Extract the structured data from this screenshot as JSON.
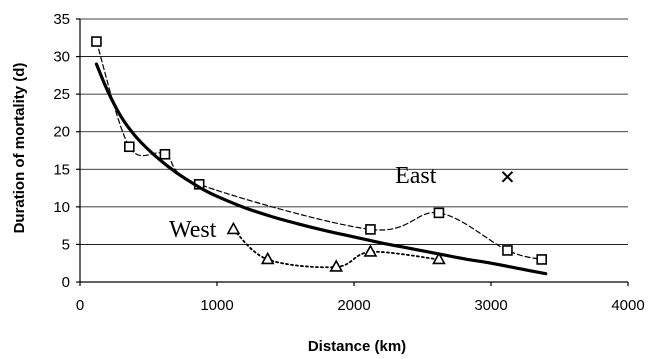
{
  "chart_data": {
    "type": "scatter",
    "xlabel": "Distance (km)",
    "ylabel": "Duration of mortality (d)",
    "xlim": [
      0,
      4000
    ],
    "ylim": [
      0,
      35
    ],
    "x_ticks": [
      0,
      1000,
      2000,
      3000,
      4000
    ],
    "y_ticks": [
      0,
      5,
      10,
      15,
      20,
      25,
      30,
      35
    ],
    "grid": "horizontal",
    "annotations": [
      {
        "text": "East",
        "x": 2300,
        "y": 13.2
      },
      {
        "text": "West",
        "x": 650,
        "y": 6.0
      }
    ],
    "series": [
      {
        "marker": "square",
        "style": "dashed",
        "points": [
          [
            120,
            32
          ],
          [
            360,
            18
          ],
          [
            620,
            17
          ],
          [
            870,
            13
          ],
          [
            2120,
            7
          ],
          [
            2620,
            9.2
          ],
          [
            3120,
            4.2
          ],
          [
            3370,
            3
          ]
        ]
      },
      {
        "marker": "triangle",
        "style": "dotted",
        "points": [
          [
            1120,
            7
          ],
          [
            1370,
            3
          ],
          [
            1870,
            2
          ],
          [
            2120,
            4
          ],
          [
            2620,
            3
          ]
        ]
      },
      {
        "marker": "x",
        "style": "none",
        "points": [
          [
            3120,
            14
          ]
        ]
      },
      {
        "marker": "none",
        "style": "solid",
        "points": [
          [
            120,
            29
          ],
          [
            200,
            25.5
          ],
          [
            300,
            22
          ],
          [
            400,
            19.5
          ],
          [
            500,
            17.6
          ],
          [
            600,
            16.0
          ],
          [
            700,
            14.6
          ],
          [
            800,
            13.4
          ],
          [
            900,
            12.3
          ],
          [
            1000,
            11.4
          ],
          [
            1200,
            9.9
          ],
          [
            1400,
            8.7
          ],
          [
            1600,
            7.7
          ],
          [
            1800,
            6.8
          ],
          [
            2000,
            6.0
          ],
          [
            2200,
            5.2
          ],
          [
            2400,
            4.5
          ],
          [
            2600,
            3.8
          ],
          [
            2800,
            3.1
          ],
          [
            3000,
            2.5
          ],
          [
            3200,
            1.8
          ],
          [
            3400,
            1.1
          ]
        ]
      }
    ]
  }
}
